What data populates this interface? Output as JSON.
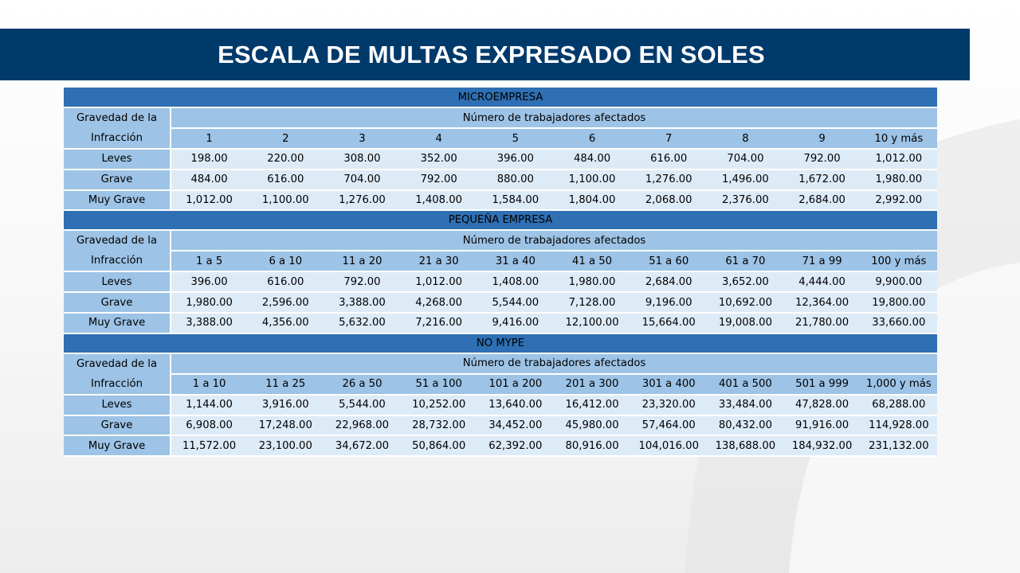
{
  "title": "ESCALA DE MULTAS EXPRESADO  EN SOLES",
  "sections": [
    {
      "name": "MICROEMPRESA",
      "gravedad_label_1": "Gravedad de la",
      "gravedad_label_2": "Infracción",
      "workers_header": "Número de trabajadores afectados",
      "columns": [
        "1",
        "2",
        "3",
        "4",
        "5",
        "6",
        "7",
        "8",
        "9",
        "10 y más"
      ],
      "rows": [
        {
          "label": "Leves",
          "values": [
            "198.00",
            "220.00",
            "308.00",
            "352.00",
            "396.00",
            "484.00",
            "616.00",
            "704.00",
            "792.00",
            "1,012.00"
          ]
        },
        {
          "label": "Grave",
          "values": [
            "484.00",
            "616.00",
            "704.00",
            "792.00",
            "880.00",
            "1,100.00",
            "1,276.00",
            "1,496.00",
            "1,672.00",
            "1,980.00"
          ]
        },
        {
          "label": "Muy Grave",
          "values": [
            "1,012.00",
            "1,100.00",
            "1,276.00",
            "1,408.00",
            "1,584.00",
            "1,804.00",
            "2,068.00",
            "2,376.00",
            "2,684.00",
            "2,992.00"
          ]
        }
      ]
    },
    {
      "name": "PEQUEÑA EMPRESA",
      "gravedad_label_1": "Gravedad de la",
      "gravedad_label_2": "Infracción",
      "workers_header": "Número de trabajadores afectados",
      "columns": [
        "1 a 5",
        "6 a 10",
        "11 a 20",
        "21 a 30",
        "31 a 40",
        "41 a 50",
        "51 a 60",
        "61 a 70",
        "71 a 99",
        "100 y más"
      ],
      "rows": [
        {
          "label": "Leves",
          "values": [
            "396.00",
            "616.00",
            "792.00",
            "1,012.00",
            "1,408.00",
            "1,980.00",
            "2,684.00",
            "3,652.00",
            "4,444.00",
            "9,900.00"
          ]
        },
        {
          "label": "Grave",
          "values": [
            "1,980.00",
            "2,596.00",
            "3,388.00",
            "4,268.00",
            "5,544.00",
            "7,128.00",
            "9,196.00",
            "10,692.00",
            "12,364.00",
            "19,800.00"
          ]
        },
        {
          "label": "Muy Grave",
          "values": [
            "3,388.00",
            "4,356.00",
            "5,632.00",
            "7,216.00",
            "9,416.00",
            "12,100.00",
            "15,664.00",
            "19,008.00",
            "21,780.00",
            "33,660.00"
          ]
        }
      ]
    },
    {
      "name": "NO MYPE",
      "gravedad_label_1": "Gravedad de la",
      "gravedad_label_2": "Infracción",
      "workers_header": "Número de trabajadores afectados",
      "columns": [
        "1 a 10",
        "11 a 25",
        "26 a 50",
        "51 a 100",
        "101 a 200",
        "201 a 300",
        "301 a 400",
        "401 a 500",
        "501 a 999",
        "1,000 y más"
      ],
      "rows": [
        {
          "label": "Leves",
          "values": [
            "1,144.00",
            "3,916.00",
            "5,544.00",
            "10,252.00",
            "13,640.00",
            "16,412.00",
            "23,320.00",
            "33,484.00",
            "47,828.00",
            "68,288.00"
          ]
        },
        {
          "label": "Grave",
          "values": [
            "6,908.00",
            "17,248.00",
            "22,968.00",
            "28,732.00",
            "34,452.00",
            "45,980.00",
            "57,464.00",
            "80,432.00",
            "91,916.00",
            "114,928.00"
          ]
        },
        {
          "label": "Muy Grave",
          "values": [
            "11,572.00",
            "23,100.00",
            "34,672.00",
            "50,864.00",
            "62,392.00",
            "80,916.00",
            "104,016.00",
            "138,688.00",
            "184,932.00",
            "231,132.00"
          ]
        }
      ]
    }
  ],
  "colors": {
    "title_bar": "#003a6b",
    "section_header": "#2f6fb3",
    "header_cell": "#9dc3e6",
    "data_cell": "#ddebf7"
  }
}
